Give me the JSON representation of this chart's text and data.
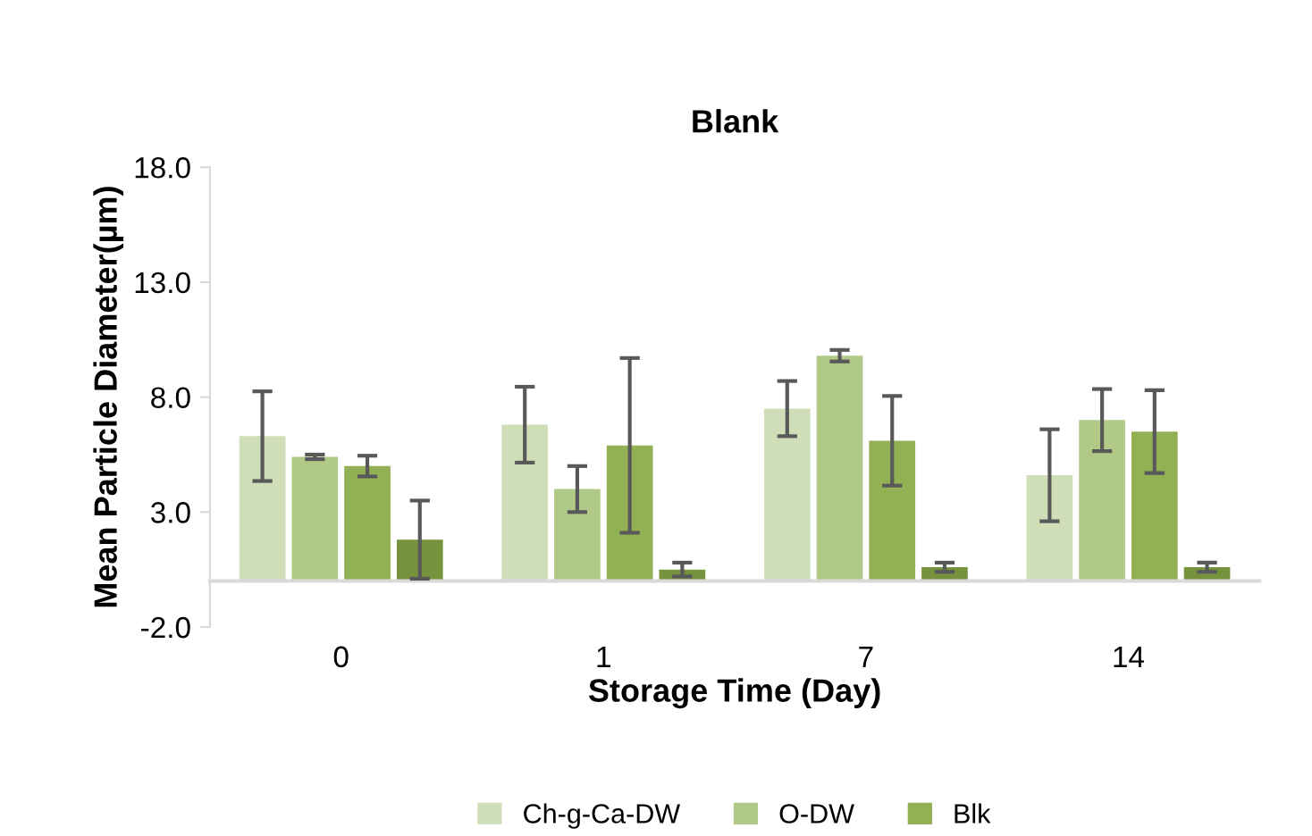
{
  "chart_data": {
    "type": "bar",
    "title": "Blank",
    "xlabel": "Storage Time (Day)",
    "ylabel": "Mean Particle Diameter(µm)",
    "categories": [
      "0",
      "1",
      "7",
      "14"
    ],
    "series": [
      {
        "name": "Ch-g-Ca-DW",
        "color": "#d0deb8",
        "values": [
          6.3,
          6.8,
          7.5,
          4.6
        ],
        "errors": [
          1.95,
          1.65,
          1.2,
          2.0
        ]
      },
      {
        "name": "O-DW",
        "color": "#b0c987",
        "values": [
          5.4,
          4.0,
          9.8,
          7.0
        ],
        "errors": [
          0.1,
          1.0,
          0.25,
          1.35
        ]
      },
      {
        "name": "Blk",
        "color": "#92b054",
        "values": [
          5.0,
          5.9,
          6.1,
          6.5
        ],
        "errors": [
          0.45,
          3.8,
          1.95,
          1.8
        ]
      },
      {
        "color": "#76923c",
        "values": [
          1.8,
          0.5,
          0.6,
          0.6
        ],
        "errors": [
          1.7,
          0.3,
          0.2,
          0.2
        ]
      }
    ],
    "ylim": [
      -2,
      18
    ],
    "yticks": [
      {
        "value": -2,
        "label": "-2.0"
      },
      {
        "value": 3,
        "label": "3.0"
      },
      {
        "value": 8,
        "label": "8.0"
      },
      {
        "value": 13,
        "label": "13.0"
      },
      {
        "value": 18,
        "label": "18.0"
      }
    ],
    "grid": false,
    "legend": "bottom"
  }
}
